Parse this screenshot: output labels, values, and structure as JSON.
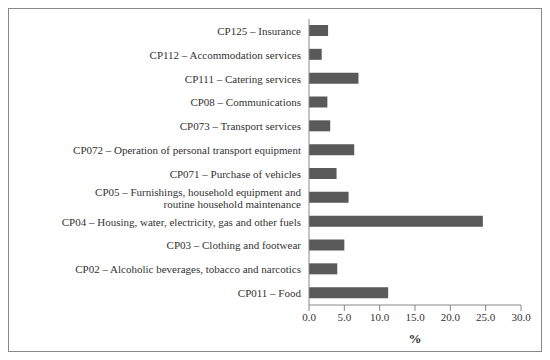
{
  "chart_data": {
    "type": "bar",
    "orientation": "horizontal",
    "categories": [
      "CP125 – Insurance",
      "CP112 – Accommodation services",
      "CP111 – Catering services",
      "CP08 – Communications",
      "CP073 – Transport services",
      "CP072 – Operation of personal transport equipment",
      "CP071 – Purchase of vehicles",
      "CP05 – Furnishings, household equipment and\nroutine household maintenance",
      "CP04 – Housing, water, electricity, gas and other fuels",
      "CP03 – Clothing and footwear",
      "CP02 – Alcoholic beverages, tobacco and narcotics",
      "CP011 – Food"
    ],
    "values": [
      2.7,
      1.8,
      7.0,
      2.6,
      3.0,
      6.4,
      3.9,
      5.6,
      24.6,
      5.0,
      4.0,
      11.2
    ],
    "color": "#595959",
    "x_label": "%",
    "xlim": [
      0,
      30
    ],
    "xticks": [
      {
        "value": 0,
        "label": "0.0"
      },
      {
        "value": 5,
        "label": "5.0"
      },
      {
        "value": 10,
        "label": "10.0"
      },
      {
        "value": 15,
        "label": "15.0"
      },
      {
        "value": 20,
        "label": "20.0"
      },
      {
        "value": 25,
        "label": "25.0"
      },
      {
        "value": 30,
        "label": "30.0"
      }
    ],
    "grid": false
  }
}
